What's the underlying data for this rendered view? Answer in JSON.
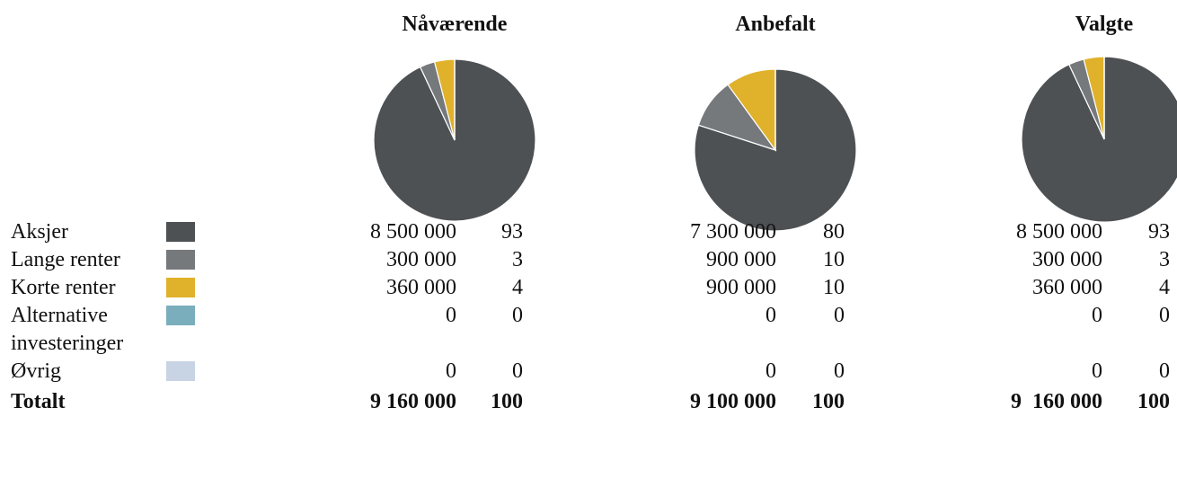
{
  "categories": [
    {
      "label": "Aksjer",
      "color": "#4d5154"
    },
    {
      "label": "Lange renter",
      "color": "#76797c"
    },
    {
      "label": "Korte renter",
      "color": "#e0b12a"
    },
    {
      "label": "Alternative investeringer",
      "color": "#7aaebd"
    },
    {
      "label": "Øvrig",
      "color": "#c8d4e3"
    }
  ],
  "total_label": "Totalt",
  "portfolios": [
    {
      "title": "Nåværende",
      "amounts": [
        "8 500 000",
        "300 000",
        "360 000",
        "0",
        "0"
      ],
      "percents": [
        93,
        3,
        4,
        0,
        0
      ],
      "total_amount": "9 160 000",
      "total_percent": 100
    },
    {
      "title": "Anbefalt",
      "amounts": [
        "7 300 000",
        "900 000",
        "900 000",
        "0",
        "0"
      ],
      "percents": [
        80,
        10,
        10,
        0,
        0
      ],
      "total_amount": "9 100 000",
      "total_percent": 100
    },
    {
      "title": "Valgte",
      "amounts": [
        "8 500 000",
        "300 000",
        "360 000",
        "0",
        "0"
      ],
      "percents": [
        93,
        3,
        4,
        0,
        0
      ],
      "total_amount": "9  160 000",
      "total_percent": 100
    }
  ]
}
